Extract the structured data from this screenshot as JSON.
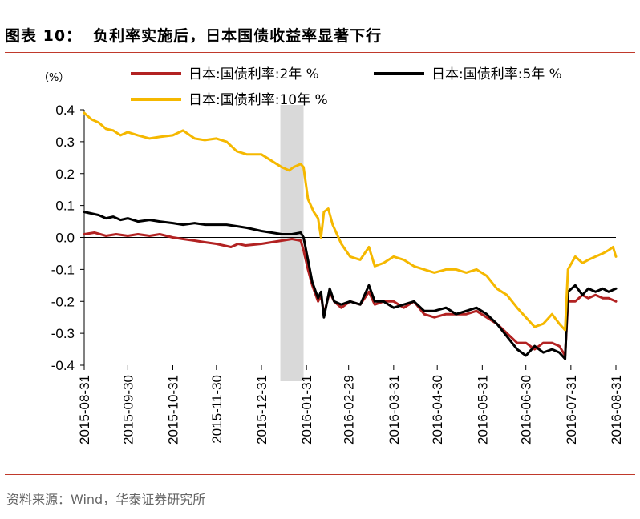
{
  "figure": {
    "number": "图表 10：",
    "title": "负利率实施后，日本国债收益率显著下行",
    "source": "资料来源：Wind，华泰证券研究所"
  },
  "chart_data": {
    "type": "line",
    "unit_label": "（%）",
    "ylim": [
      -0.4,
      0.4
    ],
    "yticks": [
      "0.4",
      "0.3",
      "0.2",
      "0.1",
      "0.0",
      "-0.1",
      "-0.2",
      "-0.3",
      "-0.4"
    ],
    "ytick_values": [
      0.4,
      0.3,
      0.2,
      0.1,
      0.0,
      -0.1,
      -0.2,
      -0.3,
      -0.4
    ],
    "xticks": [
      "2015-08-31",
      "2015-09-30",
      "2015-10-31",
      "2015-11-30",
      "2015-12-31",
      "2016-01-31",
      "2016-02-29",
      "2016-03-31",
      "2016-04-30",
      "2016-05-31",
      "2016-06-30",
      "2016-07-31",
      "2016-08-31"
    ],
    "xlim": [
      "2015-08-31",
      "2016-08-31"
    ],
    "highlight_band": [
      "2016-01-13",
      "2016-01-29"
    ],
    "grid": false,
    "legend": "top",
    "series": [
      {
        "name": "日本:国债利率:2年 %",
        "color": "#b22222",
        "points": [
          [
            "2015-08-31",
            0.01
          ],
          [
            "2015-09-07",
            0.015
          ],
          [
            "2015-09-15",
            0.005
          ],
          [
            "2015-09-22",
            0.01
          ],
          [
            "2015-09-30",
            0.005
          ],
          [
            "2015-10-07",
            0.01
          ],
          [
            "2015-10-15",
            0.005
          ],
          [
            "2015-10-22",
            0.01
          ],
          [
            "2015-10-31",
            0.0
          ],
          [
            "2015-11-07",
            -0.005
          ],
          [
            "2015-11-15",
            -0.01
          ],
          [
            "2015-11-22",
            -0.015
          ],
          [
            "2015-11-30",
            -0.02
          ],
          [
            "2015-12-05",
            -0.025
          ],
          [
            "2015-12-10",
            -0.03
          ],
          [
            "2015-12-15",
            -0.02
          ],
          [
            "2015-12-20",
            -0.025
          ],
          [
            "2015-12-31",
            -0.02
          ],
          [
            "2016-01-07",
            -0.015
          ],
          [
            "2016-01-14",
            -0.01
          ],
          [
            "2016-01-21",
            -0.005
          ],
          [
            "2016-01-27",
            -0.01
          ],
          [
            "2016-01-29",
            -0.04
          ],
          [
            "2016-02-01",
            -0.1
          ],
          [
            "2016-02-04",
            -0.15
          ],
          [
            "2016-02-08",
            -0.2
          ],
          [
            "2016-02-10",
            -0.18
          ],
          [
            "2016-02-12",
            -0.24
          ],
          [
            "2016-02-16",
            -0.17
          ],
          [
            "2016-02-19",
            -0.2
          ],
          [
            "2016-02-24",
            -0.22
          ],
          [
            "2016-03-01",
            -0.2
          ],
          [
            "2016-03-08",
            -0.21
          ],
          [
            "2016-03-14",
            -0.17
          ],
          [
            "2016-03-18",
            -0.21
          ],
          [
            "2016-03-24",
            -0.2
          ],
          [
            "2016-03-31",
            -0.2
          ],
          [
            "2016-04-07",
            -0.22
          ],
          [
            "2016-04-14",
            -0.2
          ],
          [
            "2016-04-21",
            -0.24
          ],
          [
            "2016-04-28",
            -0.25
          ],
          [
            "2016-05-06",
            -0.24
          ],
          [
            "2016-05-13",
            -0.24
          ],
          [
            "2016-05-20",
            -0.24
          ],
          [
            "2016-05-27",
            -0.23
          ],
          [
            "2016-06-03",
            -0.25
          ],
          [
            "2016-06-10",
            -0.27
          ],
          [
            "2016-06-17",
            -0.3
          ],
          [
            "2016-06-24",
            -0.33
          ],
          [
            "2016-06-30",
            -0.33
          ],
          [
            "2016-07-06",
            -0.35
          ],
          [
            "2016-07-12",
            -0.33
          ],
          [
            "2016-07-18",
            -0.33
          ],
          [
            "2016-07-23",
            -0.34
          ],
          [
            "2016-07-27",
            -0.37
          ],
          [
            "2016-07-29",
            -0.2
          ],
          [
            "2016-08-03",
            -0.2
          ],
          [
            "2016-08-08",
            -0.18
          ],
          [
            "2016-08-12",
            -0.19
          ],
          [
            "2016-08-17",
            -0.18
          ],
          [
            "2016-08-22",
            -0.19
          ],
          [
            "2016-08-26",
            -0.19
          ],
          [
            "2016-08-31",
            -0.2
          ]
        ]
      },
      {
        "name": "日本:国债利率:5年 %",
        "color": "#000000",
        "points": [
          [
            "2015-08-31",
            0.08
          ],
          [
            "2015-09-05",
            0.075
          ],
          [
            "2015-09-10",
            0.07
          ],
          [
            "2015-09-15",
            0.06
          ],
          [
            "2015-09-20",
            0.065
          ],
          [
            "2015-09-25",
            0.055
          ],
          [
            "2015-09-30",
            0.06
          ],
          [
            "2015-10-07",
            0.05
          ],
          [
            "2015-10-15",
            0.055
          ],
          [
            "2015-10-22",
            0.05
          ],
          [
            "2015-10-31",
            0.045
          ],
          [
            "2015-11-07",
            0.04
          ],
          [
            "2015-11-15",
            0.045
          ],
          [
            "2015-11-22",
            0.04
          ],
          [
            "2015-11-30",
            0.04
          ],
          [
            "2015-12-07",
            0.04
          ],
          [
            "2015-12-14",
            0.035
          ],
          [
            "2015-12-21",
            0.03
          ],
          [
            "2015-12-31",
            0.02
          ],
          [
            "2016-01-07",
            0.015
          ],
          [
            "2016-01-14",
            0.01
          ],
          [
            "2016-01-21",
            0.01
          ],
          [
            "2016-01-27",
            0.015
          ],
          [
            "2016-01-29",
            0.0
          ],
          [
            "2016-02-01",
            -0.07
          ],
          [
            "2016-02-04",
            -0.14
          ],
          [
            "2016-02-08",
            -0.19
          ],
          [
            "2016-02-10",
            -0.17
          ],
          [
            "2016-02-12",
            -0.25
          ],
          [
            "2016-02-16",
            -0.16
          ],
          [
            "2016-02-19",
            -0.2
          ],
          [
            "2016-02-24",
            -0.21
          ],
          [
            "2016-03-01",
            -0.2
          ],
          [
            "2016-03-08",
            -0.21
          ],
          [
            "2016-03-14",
            -0.15
          ],
          [
            "2016-03-18",
            -0.2
          ],
          [
            "2016-03-24",
            -0.2
          ],
          [
            "2016-03-31",
            -0.22
          ],
          [
            "2016-04-07",
            -0.21
          ],
          [
            "2016-04-14",
            -0.2
          ],
          [
            "2016-04-21",
            -0.23
          ],
          [
            "2016-04-28",
            -0.23
          ],
          [
            "2016-05-06",
            -0.22
          ],
          [
            "2016-05-13",
            -0.24
          ],
          [
            "2016-05-20",
            -0.23
          ],
          [
            "2016-05-27",
            -0.22
          ],
          [
            "2016-06-03",
            -0.24
          ],
          [
            "2016-06-10",
            -0.27
          ],
          [
            "2016-06-17",
            -0.31
          ],
          [
            "2016-06-24",
            -0.35
          ],
          [
            "2016-06-30",
            -0.37
          ],
          [
            "2016-07-06",
            -0.34
          ],
          [
            "2016-07-12",
            -0.36
          ],
          [
            "2016-07-18",
            -0.35
          ],
          [
            "2016-07-23",
            -0.36
          ],
          [
            "2016-07-27",
            -0.38
          ],
          [
            "2016-07-29",
            -0.17
          ],
          [
            "2016-08-03",
            -0.15
          ],
          [
            "2016-08-08",
            -0.18
          ],
          [
            "2016-08-12",
            -0.16
          ],
          [
            "2016-08-17",
            -0.17
          ],
          [
            "2016-08-22",
            -0.16
          ],
          [
            "2016-08-26",
            -0.17
          ],
          [
            "2016-08-31",
            -0.16
          ]
        ]
      },
      {
        "name": "日本:国债利率:10年 %",
        "color": "#f5b800",
        "points": [
          [
            "2015-08-31",
            0.39
          ],
          [
            "2015-09-05",
            0.37
          ],
          [
            "2015-09-10",
            0.36
          ],
          [
            "2015-09-15",
            0.34
          ],
          [
            "2015-09-20",
            0.335
          ],
          [
            "2015-09-25",
            0.32
          ],
          [
            "2015-09-30",
            0.33
          ],
          [
            "2015-10-07",
            0.32
          ],
          [
            "2015-10-15",
            0.31
          ],
          [
            "2015-10-22",
            0.315
          ],
          [
            "2015-10-31",
            0.32
          ],
          [
            "2015-11-07",
            0.335
          ],
          [
            "2015-11-15",
            0.31
          ],
          [
            "2015-11-22",
            0.305
          ],
          [
            "2015-11-30",
            0.31
          ],
          [
            "2015-12-07",
            0.3
          ],
          [
            "2015-12-14",
            0.27
          ],
          [
            "2015-12-21",
            0.26
          ],
          [
            "2015-12-31",
            0.26
          ],
          [
            "2016-01-07",
            0.24
          ],
          [
            "2016-01-14",
            0.22
          ],
          [
            "2016-01-19",
            0.21
          ],
          [
            "2016-01-22",
            0.22
          ],
          [
            "2016-01-27",
            0.23
          ],
          [
            "2016-01-29",
            0.22
          ],
          [
            "2016-02-01",
            0.12
          ],
          [
            "2016-02-05",
            0.08
          ],
          [
            "2016-02-08",
            0.06
          ],
          [
            "2016-02-10",
            0.0
          ],
          [
            "2016-02-12",
            0.08
          ],
          [
            "2016-02-15",
            0.09
          ],
          [
            "2016-02-18",
            0.04
          ],
          [
            "2016-02-24",
            -0.02
          ],
          [
            "2016-03-01",
            -0.06
          ],
          [
            "2016-03-08",
            -0.07
          ],
          [
            "2016-03-14",
            -0.03
          ],
          [
            "2016-03-18",
            -0.09
          ],
          [
            "2016-03-24",
            -0.08
          ],
          [
            "2016-03-31",
            -0.06
          ],
          [
            "2016-04-07",
            -0.07
          ],
          [
            "2016-04-14",
            -0.09
          ],
          [
            "2016-04-21",
            -0.1
          ],
          [
            "2016-04-28",
            -0.11
          ],
          [
            "2016-05-06",
            -0.1
          ],
          [
            "2016-05-13",
            -0.1
          ],
          [
            "2016-05-20",
            -0.11
          ],
          [
            "2016-05-27",
            -0.1
          ],
          [
            "2016-06-03",
            -0.12
          ],
          [
            "2016-06-10",
            -0.16
          ],
          [
            "2016-06-17",
            -0.18
          ],
          [
            "2016-06-24",
            -0.22
          ],
          [
            "2016-06-30",
            -0.25
          ],
          [
            "2016-07-06",
            -0.28
          ],
          [
            "2016-07-12",
            -0.27
          ],
          [
            "2016-07-18",
            -0.24
          ],
          [
            "2016-07-23",
            -0.27
          ],
          [
            "2016-07-27",
            -0.29
          ],
          [
            "2016-07-29",
            -0.1
          ],
          [
            "2016-08-03",
            -0.06
          ],
          [
            "2016-08-08",
            -0.08
          ],
          [
            "2016-08-12",
            -0.07
          ],
          [
            "2016-08-17",
            -0.06
          ],
          [
            "2016-08-22",
            -0.05
          ],
          [
            "2016-08-26",
            -0.04
          ],
          [
            "2016-08-29",
            -0.03
          ],
          [
            "2016-08-31",
            -0.06
          ]
        ]
      }
    ]
  }
}
